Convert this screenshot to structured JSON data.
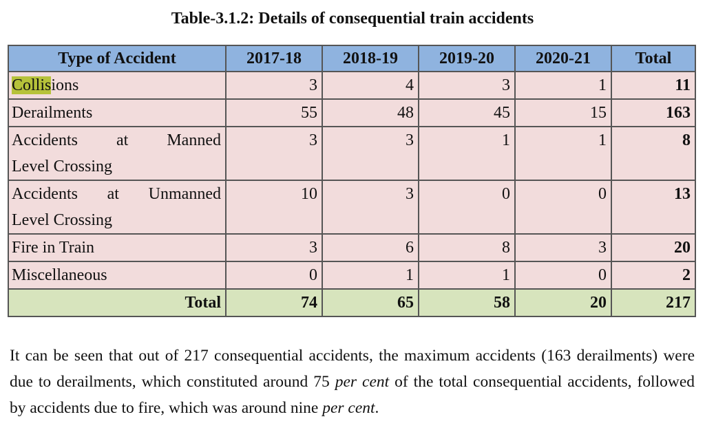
{
  "title": "Table-3.1.2: Details of consequential train accidents",
  "table": {
    "headers": [
      "Type of Accident",
      "2017-18",
      "2018-19",
      "2019-20",
      "2020-21",
      "Total"
    ],
    "rows": [
      {
        "type_hl": "Collis",
        "type_rest": "ions",
        "values": [
          "3",
          "4",
          "3",
          "1"
        ],
        "total": "11"
      },
      {
        "type": "Derailments",
        "values": [
          "55",
          "48",
          "45",
          "15"
        ],
        "total": "163"
      },
      {
        "type_line1": "Accidents at Manned",
        "type_line2": "Level Crossing",
        "values": [
          "3",
          "3",
          "1",
          "1"
        ],
        "total": "8"
      },
      {
        "type_line1": "Accidents at Unmanned",
        "type_line2": "Level Crossing",
        "values": [
          "10",
          "3",
          "0",
          "0"
        ],
        "total": "13"
      },
      {
        "type": "Fire in Train",
        "values": [
          "3",
          "6",
          "8",
          "3"
        ],
        "total": "20"
      },
      {
        "type": "Miscellaneous",
        "values": [
          "0",
          "1",
          "1",
          "0"
        ],
        "total": "2"
      }
    ],
    "total_row": {
      "label": "Total",
      "values": [
        "74",
        "65",
        "58",
        "20"
      ],
      "total": "217"
    }
  },
  "colors": {
    "header_bg": "#8fb3df",
    "row_bg": "#f2dcdc",
    "total_bg": "#d7e4bd",
    "highlight": "#b6c23a"
  },
  "paragraph": {
    "part1": "It can be seen that out of 217 consequential accidents, the maximum accidents (163 derailments) were due to derailments, which constituted around 75 ",
    "italic1": "per cent",
    "part2": " of the total consequential accidents, followed by accidents due to fire, which was around nine ",
    "italic2": "per cent",
    "part3": "."
  }
}
